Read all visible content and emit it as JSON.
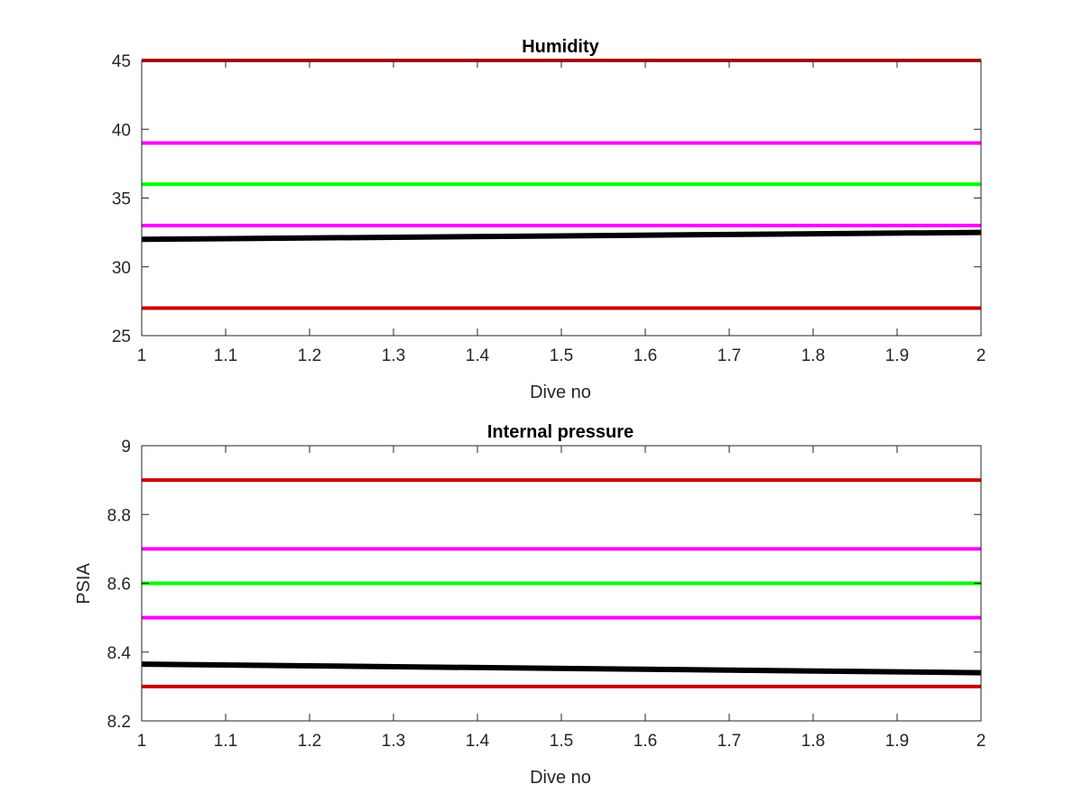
{
  "chart_data": [
    {
      "type": "line",
      "title": "Humidity",
      "xlabel": "Dive no",
      "ylabel": "",
      "xlim": [
        1,
        2
      ],
      "ylim": [
        25,
        45
      ],
      "xticks": [
        "1",
        "1.1",
        "1.2",
        "1.3",
        "1.4",
        "1.5",
        "1.6",
        "1.7",
        "1.8",
        "1.9",
        "2"
      ],
      "yticks": [
        "25",
        "30",
        "35",
        "40",
        "45"
      ],
      "grid": false,
      "series": [
        {
          "x": [
            1,
            2
          ],
          "y": [
            45,
            45
          ],
          "color": "#cc0000"
        },
        {
          "x": [
            1,
            2
          ],
          "y": [
            39,
            39
          ],
          "color": "#ff00ff"
        },
        {
          "x": [
            1,
            2
          ],
          "y": [
            36,
            36
          ],
          "color": "#00ff00"
        },
        {
          "x": [
            1,
            2
          ],
          "y": [
            33,
            33
          ],
          "color": "#ff00ff"
        },
        {
          "x": [
            1,
            2
          ],
          "y": [
            32.0,
            32.5
          ],
          "color": "#000000"
        },
        {
          "x": [
            1,
            2
          ],
          "y": [
            27,
            27
          ],
          "color": "#cc0000"
        }
      ]
    },
    {
      "type": "line",
      "title": "Internal pressure",
      "xlabel": "Dive no",
      "ylabel": "PSIA",
      "xlim": [
        1,
        2
      ],
      "ylim": [
        8.2,
        9
      ],
      "xticks": [
        "1",
        "1.1",
        "1.2",
        "1.3",
        "1.4",
        "1.5",
        "1.6",
        "1.7",
        "1.8",
        "1.9",
        "2"
      ],
      "yticks": [
        "8.2",
        "8.4",
        "8.6",
        "8.8",
        "9"
      ],
      "grid": false,
      "series": [
        {
          "x": [
            1,
            2
          ],
          "y": [
            8.9,
            8.9
          ],
          "color": "#cc0000"
        },
        {
          "x": [
            1,
            2
          ],
          "y": [
            8.7,
            8.7
          ],
          "color": "#ff00ff"
        },
        {
          "x": [
            1,
            2
          ],
          "y": [
            8.6,
            8.6
          ],
          "color": "#00ff00"
        },
        {
          "x": [
            1,
            2
          ],
          "y": [
            8.5,
            8.5
          ],
          "color": "#ff00ff"
        },
        {
          "x": [
            1,
            2
          ],
          "y": [
            8.365,
            8.34
          ],
          "color": "#000000"
        },
        {
          "x": [
            1,
            2
          ],
          "y": [
            8.3,
            8.3
          ],
          "color": "#cc0000"
        }
      ]
    }
  ]
}
